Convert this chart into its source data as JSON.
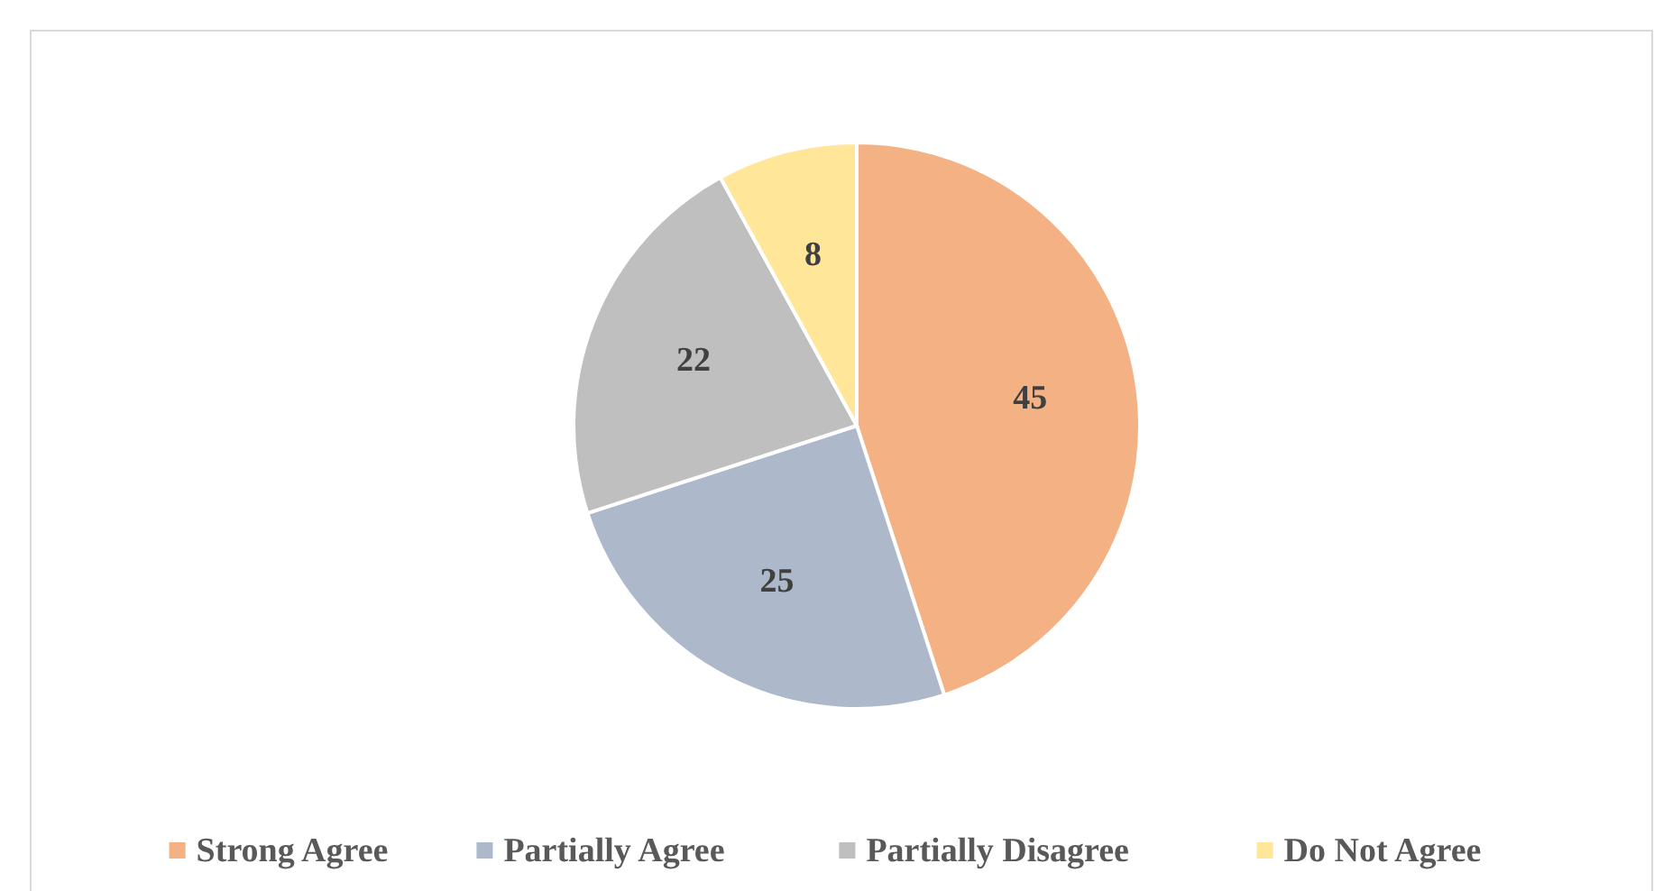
{
  "chart_data": {
    "type": "pie",
    "categories": [
      "Strong Agree",
      "Partially Agree",
      "Partially Disagree",
      "Do Not Agree"
    ],
    "values": [
      45,
      25,
      22,
      8
    ],
    "colors": [
      "#f4b183",
      "#adb9ca",
      "#bfbfbf",
      "#ffe699"
    ],
    "data_labels": true,
    "legend": "bottom"
  }
}
